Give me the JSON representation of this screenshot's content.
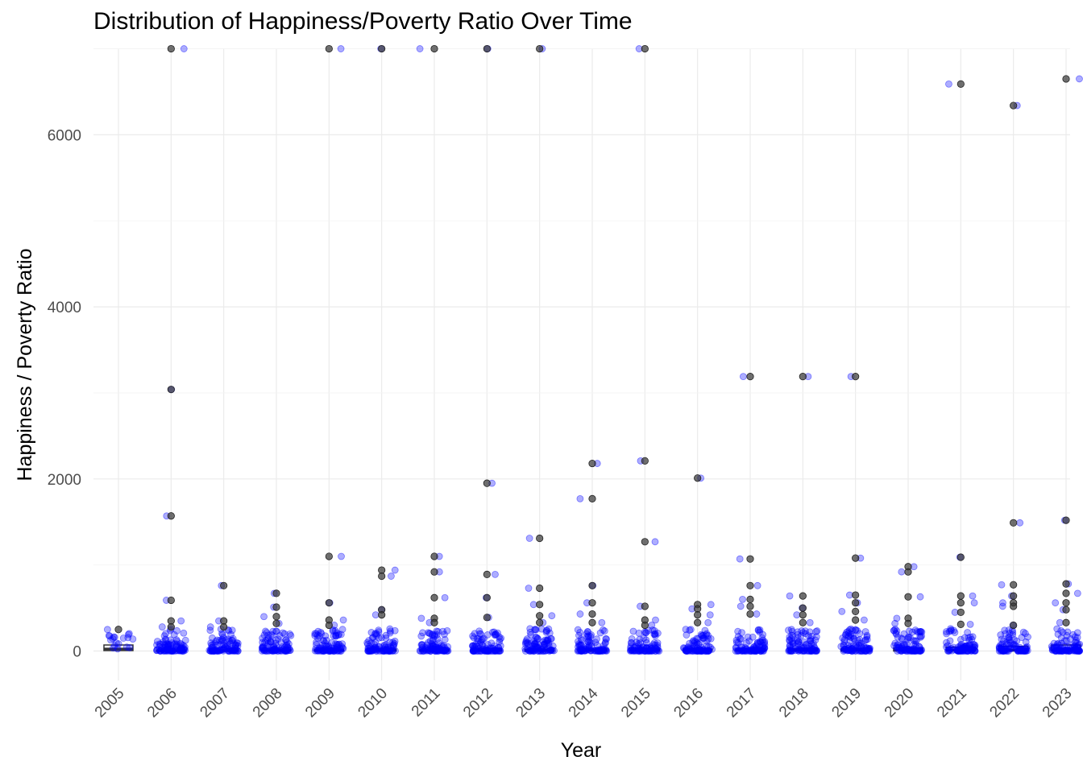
{
  "chart_data": {
    "type": "boxplot",
    "title": "Distribution of Happiness/Poverty Ratio Over Time",
    "xlabel": "Year",
    "ylabel": "Happiness / Poverty Ratio",
    "ylim": [
      -250,
      7000
    ],
    "yticks": [
      0,
      2000,
      4000,
      6000
    ],
    "grid": true,
    "legend": "none",
    "colors": {
      "box_outline": "#333333",
      "outlier": "#333333",
      "jitter": "#0000ff"
    },
    "categories": [
      "2005",
      "2006",
      "2007",
      "2008",
      "2009",
      "2010",
      "2011",
      "2012",
      "2013",
      "2014",
      "2015",
      "2016",
      "2017",
      "2018",
      "2019",
      "2020",
      "2021",
      "2022",
      "2023"
    ],
    "boxes": [
      {
        "q1": 5,
        "median": 25,
        "q3": 70
      },
      {
        "q1": 0,
        "median": 3,
        "q3": 10
      },
      {
        "q1": 0,
        "median": 4,
        "q3": 12
      },
      {
        "q1": 0,
        "median": 5,
        "q3": 18
      },
      {
        "q1": 0,
        "median": 5,
        "q3": 18
      },
      {
        "q1": 0,
        "median": 6,
        "q3": 22
      },
      {
        "q1": 0,
        "median": 5,
        "q3": 18
      },
      {
        "q1": 0,
        "median": 6,
        "q3": 22
      },
      {
        "q1": 0,
        "median": 5,
        "q3": 20
      },
      {
        "q1": 0,
        "median": 6,
        "q3": 22
      },
      {
        "q1": 0,
        "median": 5,
        "q3": 20
      },
      {
        "q1": 0,
        "median": 6,
        "q3": 22
      },
      {
        "q1": 0,
        "median": 6,
        "q3": 22
      },
      {
        "q1": 0,
        "median": 7,
        "q3": 25
      },
      {
        "q1": 0,
        "median": 7,
        "q3": 25
      },
      {
        "q1": 0,
        "median": 8,
        "q3": 35
      },
      {
        "q1": 0,
        "median": 10,
        "q3": 45
      },
      {
        "q1": 0,
        "median": 10,
        "q3": 55
      },
      {
        "q1": 0,
        "median": 12,
        "q3": 70
      }
    ],
    "outliers": [
      {
        "x": "2005",
        "y": 250
      },
      {
        "x": "2006",
        "y": 7000
      },
      {
        "x": "2006",
        "y": 3040
      },
      {
        "x": "2006",
        "y": 1570
      },
      {
        "x": "2006",
        "y": 590
      },
      {
        "x": "2006",
        "y": 350
      },
      {
        "x": "2006",
        "y": 280
      },
      {
        "x": "2007",
        "y": 760
      },
      {
        "x": "2007",
        "y": 350
      },
      {
        "x": "2007",
        "y": 280
      },
      {
        "x": "2008",
        "y": 670
      },
      {
        "x": "2008",
        "y": 510
      },
      {
        "x": "2008",
        "y": 400
      },
      {
        "x": "2008",
        "y": 320
      },
      {
        "x": "2009",
        "y": 7000
      },
      {
        "x": "2009",
        "y": 1100
      },
      {
        "x": "2009",
        "y": 560
      },
      {
        "x": "2009",
        "y": 360
      },
      {
        "x": "2009",
        "y": 300
      },
      {
        "x": "2010",
        "y": 7000
      },
      {
        "x": "2010",
        "y": 940
      },
      {
        "x": "2010",
        "y": 870
      },
      {
        "x": "2010",
        "y": 480
      },
      {
        "x": "2010",
        "y": 420
      },
      {
        "x": "2011",
        "y": 7000
      },
      {
        "x": "2011",
        "y": 1100
      },
      {
        "x": "2011",
        "y": 920
      },
      {
        "x": "2011",
        "y": 620
      },
      {
        "x": "2011",
        "y": 380
      },
      {
        "x": "2011",
        "y": 330
      },
      {
        "x": "2012",
        "y": 7000
      },
      {
        "x": "2012",
        "y": 1950
      },
      {
        "x": "2012",
        "y": 890
      },
      {
        "x": "2012",
        "y": 620
      },
      {
        "x": "2012",
        "y": 390
      },
      {
        "x": "2013",
        "y": 7000
      },
      {
        "x": "2013",
        "y": 1310
      },
      {
        "x": "2013",
        "y": 730
      },
      {
        "x": "2013",
        "y": 540
      },
      {
        "x": "2013",
        "y": 410
      },
      {
        "x": "2013",
        "y": 330
      },
      {
        "x": "2014",
        "y": 2180
      },
      {
        "x": "2014",
        "y": 1770
      },
      {
        "x": "2014",
        "y": 760
      },
      {
        "x": "2014",
        "y": 560
      },
      {
        "x": "2014",
        "y": 430
      },
      {
        "x": "2014",
        "y": 330
      },
      {
        "x": "2015",
        "y": 7000
      },
      {
        "x": "2015",
        "y": 2210
      },
      {
        "x": "2015",
        "y": 1270
      },
      {
        "x": "2015",
        "y": 520
      },
      {
        "x": "2015",
        "y": 360
      },
      {
        "x": "2015",
        "y": 300
      },
      {
        "x": "2016",
        "y": 2010
      },
      {
        "x": "2016",
        "y": 540
      },
      {
        "x": "2016",
        "y": 490
      },
      {
        "x": "2016",
        "y": 420
      },
      {
        "x": "2016",
        "y": 330
      },
      {
        "x": "2017",
        "y": 3190
      },
      {
        "x": "2017",
        "y": 1070
      },
      {
        "x": "2017",
        "y": 760
      },
      {
        "x": "2017",
        "y": 600
      },
      {
        "x": "2017",
        "y": 520
      },
      {
        "x": "2017",
        "y": 430
      },
      {
        "x": "2018",
        "y": 3190
      },
      {
        "x": "2018",
        "y": 640
      },
      {
        "x": "2018",
        "y": 500
      },
      {
        "x": "2018",
        "y": 420
      },
      {
        "x": "2018",
        "y": 330
      },
      {
        "x": "2019",
        "y": 3190
      },
      {
        "x": "2019",
        "y": 1080
      },
      {
        "x": "2019",
        "y": 650
      },
      {
        "x": "2019",
        "y": 560
      },
      {
        "x": "2019",
        "y": 460
      },
      {
        "x": "2019",
        "y": 360
      },
      {
        "x": "2020",
        "y": 980
      },
      {
        "x": "2020",
        "y": 920
      },
      {
        "x": "2020",
        "y": 630
      },
      {
        "x": "2020",
        "y": 380
      },
      {
        "x": "2020",
        "y": 320
      },
      {
        "x": "2021",
        "y": 6590
      },
      {
        "x": "2021",
        "y": 1090
      },
      {
        "x": "2021",
        "y": 640
      },
      {
        "x": "2021",
        "y": 560
      },
      {
        "x": "2021",
        "y": 450
      },
      {
        "x": "2021",
        "y": 310
      },
      {
        "x": "2022",
        "y": 6340
      },
      {
        "x": "2022",
        "y": 1490
      },
      {
        "x": "2022",
        "y": 770
      },
      {
        "x": "2022",
        "y": 640
      },
      {
        "x": "2022",
        "y": 560
      },
      {
        "x": "2022",
        "y": 520
      },
      {
        "x": "2022",
        "y": 300
      },
      {
        "x": "2023",
        "y": 6650
      },
      {
        "x": "2023",
        "y": 1520
      },
      {
        "x": "2023",
        "y": 780
      },
      {
        "x": "2023",
        "y": 670
      },
      {
        "x": "2023",
        "y": 560
      },
      {
        "x": "2023",
        "y": 480
      },
      {
        "x": "2023",
        "y": 330
      }
    ]
  }
}
